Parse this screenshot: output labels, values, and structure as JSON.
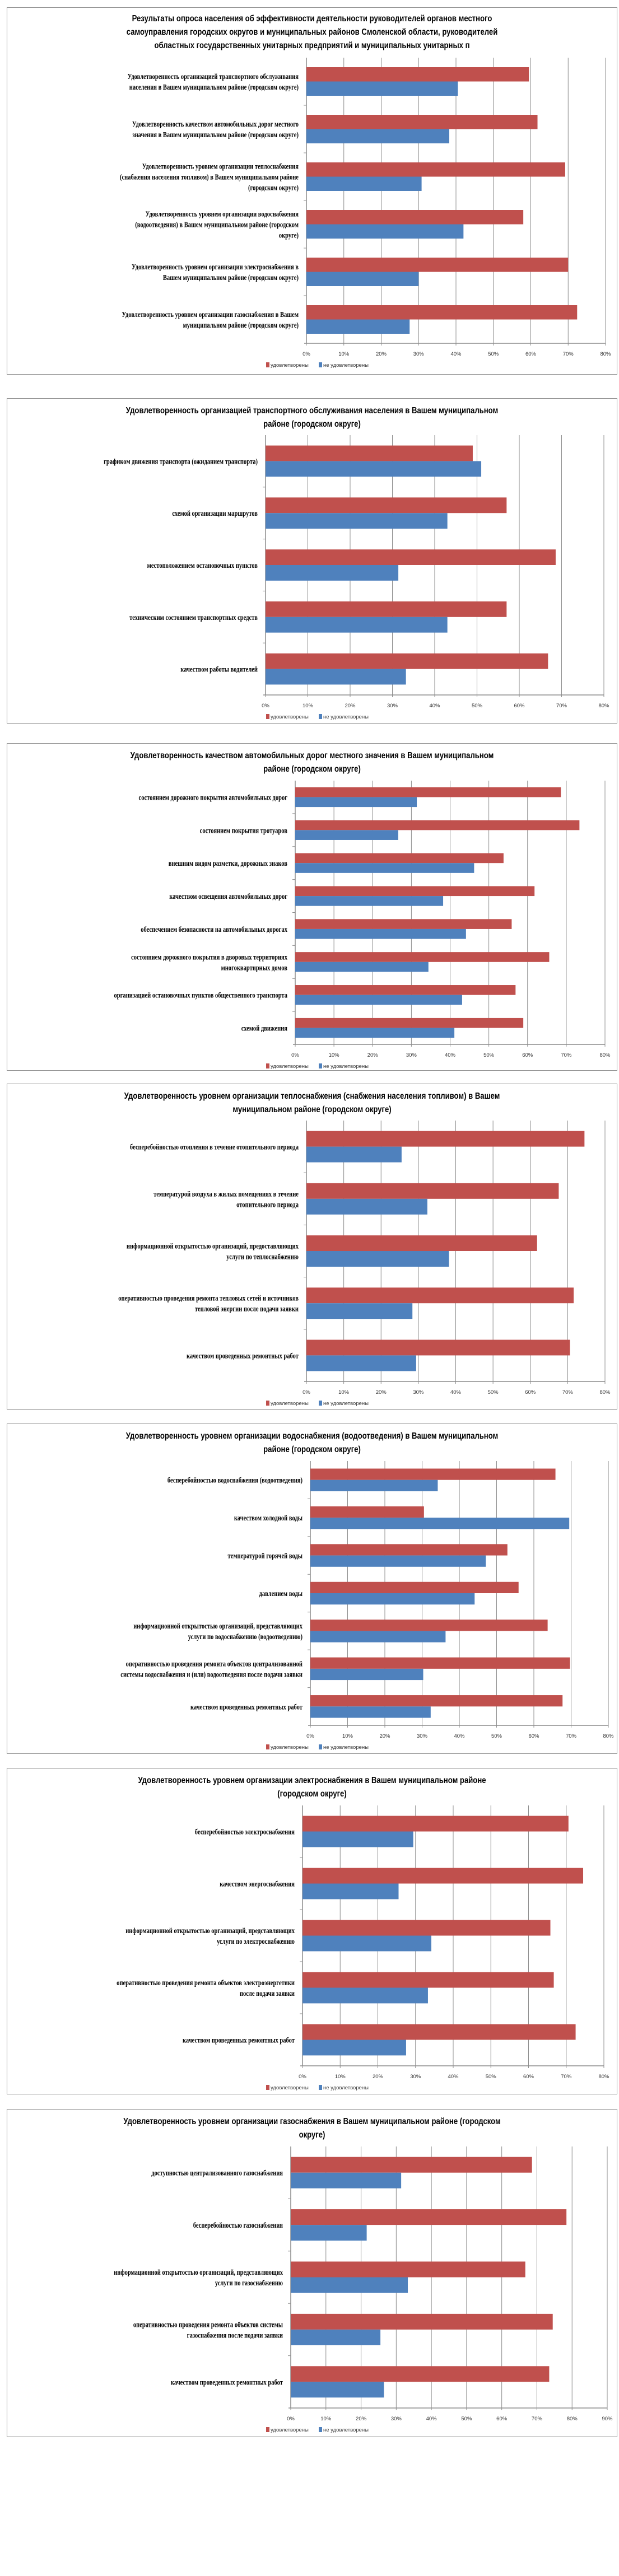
{
  "colors": {
    "satisfied": "#c0504d",
    "unsatisfied": "#4f81bd",
    "grid": "#8c8c8c",
    "frame": "#8c8c8c"
  },
  "chart_data": [
    {
      "type": "bar",
      "orientation": "horizontal",
      "title": "Результаты опроса населения об эффективности деятельности руководителей органов местного самоуправления городских округов и муниципальных районов Смоленской области, руководителей областных государственных унитарных предприятий и муниципальных унитарных п",
      "title_lines": [
        "Результаты опроса населения об эффективности деятельности руководителей органов местного",
        "самоуправления городских округов и муниципальных районов Смоленской области, руководителей",
        "областных государственных унитарных предприятий и муниципальных унитарных п"
      ],
      "categories": [
        [
          "Удовлетворенность организацией транспортного обслуживания",
          "населения в Вашем муниципальном районе (городском округе)"
        ],
        [
          "Удовлетворенность качеством автомобильных дорог местного",
          "значения в Вашем муниципальном районе (городском округе)"
        ],
        [
          "Удовлетворенность уровнем организации теплоснабжения",
          "(снабжения населения топливом) в Вашем муниципальном районе",
          "(городском округе)"
        ],
        [
          "Удовлетворенность уровнем организации водоснабжения",
          "(водоотведения) в Вашем муниципальном районе (городском",
          "округе)"
        ],
        [
          "Удовлетворенность уровнем организации электроснабжения в",
          "Вашем муниципальном районе (городском округе)"
        ],
        [
          "Удовлетворенность уровнем организации газоснабжения в Вашем",
          "муниципальном районе (городском округе)"
        ]
      ],
      "series": [
        {
          "name": "удовлетворены",
          "values": [
            59.5,
            61.8,
            69.2,
            58.0,
            70.0,
            72.4
          ]
        },
        {
          "name": "не удовлетворены",
          "values": [
            40.5,
            38.2,
            30.8,
            42.0,
            30.0,
            27.6
          ]
        }
      ],
      "xlim": [
        0,
        80
      ],
      "ticks": [
        "0%",
        "10%",
        "20%",
        "30%",
        "40%",
        "50%",
        "60%",
        "70%",
        "80%"
      ],
      "grid": true,
      "legend": "bottom"
    },
    {
      "type": "bar",
      "orientation": "horizontal",
      "title": "Удовлетворенность организацией транспортного обслуживания населения в Вашем муниципальном районе (городском округе)",
      "title_lines": [
        "Удовлетворенность организацией транспортного обслуживания населения в Вашем муниципальном",
        "районе (городском округе)"
      ],
      "categories": [
        [
          "графиком движения транспорта (ожиданием транспорта)"
        ],
        [
          "схемой организации маршрутов"
        ],
        [
          "местоположением остановочных пунктов"
        ],
        [
          "техническим состоянием транспортных средств"
        ],
        [
          "качеством работы водителей"
        ]
      ],
      "series": [
        {
          "name": "удовлетворены",
          "values": [
            49.0,
            57.0,
            68.6,
            57.0,
            66.8
          ]
        },
        {
          "name": "не удовлетворены",
          "values": [
            51.0,
            43.0,
            31.4,
            43.0,
            33.2
          ]
        }
      ],
      "xlim": [
        0,
        80
      ],
      "ticks": [
        "0%",
        "10%",
        "20%",
        "30%",
        "40%",
        "50%",
        "60%",
        "70%",
        "80%"
      ],
      "grid": true,
      "legend": "bottom"
    },
    {
      "type": "bar",
      "orientation": "horizontal",
      "title": "Удовлетворенность качеством автомобильных дорог местного значения в Вашем муниципальном районе (городском округе)",
      "title_lines": [
        "Удовлетворенность качеством автомобильных дорог местного значения в Вашем муниципальном",
        "районе (городском округе)"
      ],
      "categories": [
        [
          "состоянием дорожного покрытия  автомобильных дорог"
        ],
        [
          "состоянием покрытия  тротуаров"
        ],
        [
          "внешним  видом разметки, дорожных знаков"
        ],
        [
          "качеством освещения автомобильных дорог"
        ],
        [
          "обеспечением безопасности на автомобильных дорогах"
        ],
        [
          "состоянием дорожного покрытия  в дворовых территориях",
          "многоквартирных  домов"
        ],
        [
          "организацией остановочных  пунктов  общественного транспорта"
        ],
        [
          "схемой движения"
        ]
      ],
      "series": [
        {
          "name": "удовлетворены",
          "values": [
            68.6,
            73.4,
            53.8,
            61.8,
            55.9,
            65.6,
            56.9,
            58.9
          ]
        },
        {
          "name": "не удовлетворены",
          "values": [
            31.4,
            26.6,
            46.2,
            38.2,
            44.1,
            34.4,
            43.1,
            41.1
          ]
        }
      ],
      "xlim": [
        0,
        80
      ],
      "ticks": [
        "0%",
        "10%",
        "20%",
        "30%",
        "40%",
        "50%",
        "60%",
        "70%",
        "80%"
      ],
      "grid": true,
      "legend": "bottom"
    },
    {
      "type": "bar",
      "orientation": "horizontal",
      "title": "Удовлетворенность уровнем организации теплоснабжения (снабжения населения топливом) в Вашем муниципальном районе (городском округе)",
      "title_lines": [
        "Удовлетворенность уровнем организации теплоснабжения (снабжения населения топливом) в Вашем",
        "муниципальном районе (городском округе)"
      ],
      "categories": [
        [
          "бесперебойностью отопления в течение отопительного  периода"
        ],
        [
          "температурой  воздуха в жилых  помещениях в течение",
          "отопительного периода"
        ],
        [
          "информационной открытостью  организаций, предоставляющих",
          "услуги по теплоснабжению"
        ],
        [
          "оперативностью  проведения ремонта тепловых  сетей и источников",
          "тепловой энергии после подачи заявки"
        ],
        [
          "качеством проведенных ремонтных  работ"
        ]
      ],
      "series": [
        {
          "name": "удовлетворены",
          "values": [
            74.5,
            67.6,
            61.8,
            71.6,
            70.6
          ]
        },
        {
          "name": "не удовлетворены",
          "values": [
            25.5,
            32.4,
            38.2,
            28.4,
            29.4
          ]
        }
      ],
      "xlim": [
        0,
        80
      ],
      "ticks": [
        "0%",
        "10%",
        "20%",
        "30%",
        "40%",
        "50%",
        "60%",
        "70%",
        "80%"
      ],
      "grid": true,
      "legend": "bottom"
    },
    {
      "type": "bar",
      "orientation": "horizontal",
      "title": "Удовлетворенность уровнем организации водоснабжения (водоотведения) в Вашем муниципальном районе (городском округе)",
      "title_lines": [
        "Удовлетворенность уровнем организации водоснабжения (водоотведения) в Вашем муниципальном",
        "районе (городском округе)"
      ],
      "categories": [
        [
          "бесперебойностью водоснабжения (водоотведения)"
        ],
        [
          "качеством холодной воды"
        ],
        [
          "температурой  горячей воды"
        ],
        [
          "давлением воды"
        ],
        [
          "информационной открытостью  организаций, представляющих",
          "услуги по водоснабжению (водоотведению)"
        ],
        [
          "оперативностью  проведения ремонта объектов централизованной",
          "системы водоснабжения и (или) водоотведения после подачи заявки"
        ],
        [
          "качеством проведенных ремонтных  работ"
        ]
      ],
      "series": [
        {
          "name": "удовлетворены",
          "values": [
            65.8,
            30.5,
            52.9,
            55.9,
            63.7,
            69.7,
            67.7
          ]
        },
        {
          "name": "не удовлетворены",
          "values": [
            34.2,
            69.5,
            47.1,
            44.1,
            36.3,
            30.3,
            32.3
          ]
        }
      ],
      "xlim": [
        0,
        80
      ],
      "ticks": [
        "0%",
        "10%",
        "20%",
        "30%",
        "40%",
        "50%",
        "60%",
        "70%",
        "80%"
      ],
      "grid": true,
      "legend": "bottom"
    },
    {
      "type": "bar",
      "orientation": "horizontal",
      "title": "Удовлетворенность уровнем организации электроснабжения в Вашем муниципальном районе (городском округе)",
      "title_lines": [
        "Удовлетворенность уровнем организации электроснабжения в Вашем муниципальном районе",
        "(городском округе)"
      ],
      "categories": [
        [
          "бесперебойностью электроснабжения"
        ],
        [
          "качеством энергоснабжения"
        ],
        [
          "информационной открытостью  организаций, представляющих",
          "услуги по электроснабжению"
        ],
        [
          "оперативностью  проведения ремонта  объектов электроэнергетики",
          "после подачи заявки"
        ],
        [
          "качеством проведенных ремонтных  работ"
        ]
      ],
      "series": [
        {
          "name": "удовлетворены",
          "values": [
            70.6,
            74.5,
            65.8,
            66.7,
            72.5
          ]
        },
        {
          "name": "не удовлетворены",
          "values": [
            29.4,
            25.5,
            34.2,
            33.3,
            27.5
          ]
        }
      ],
      "xlim": [
        0,
        80
      ],
      "ticks": [
        "0%",
        "10%",
        "20%",
        "30%",
        "40%",
        "50%",
        "60%",
        "70%",
        "80%"
      ],
      "grid": true,
      "legend": "bottom"
    },
    {
      "type": "bar",
      "orientation": "horizontal",
      "title": "Удовлетворенность уровнем организации газоснабжения в Вашем муниципальном районе (городском округе)",
      "title_lines": [
        "Удовлетворенность уровнем организации газоснабжения в Вашем муниципальном районе (городском",
        "округе)"
      ],
      "categories": [
        [
          "доступностью  централизованного  газоснабжения"
        ],
        [
          "бесперебойностью газоснабжения"
        ],
        [
          "информационной открытостью  организаций, представляющих",
          "услуги по газоснабжению"
        ],
        [
          "оперативностью  проведения ремонта  объектов системы",
          "газоснабжения после подачи заявки"
        ],
        [
          "качеством проведенных ремонтных  работ"
        ]
      ],
      "series": [
        {
          "name": "удовлетворены",
          "values": [
            68.6,
            78.4,
            66.7,
            74.5,
            73.5
          ]
        },
        {
          "name": "не удовлетворены",
          "values": [
            31.4,
            21.6,
            33.3,
            25.5,
            26.5
          ]
        }
      ],
      "xlim": [
        0,
        90
      ],
      "ticks": [
        "0%",
        "10%",
        "20%",
        "30%",
        "40%",
        "50%",
        "60%",
        "70%",
        "80%",
        "90%"
      ],
      "grid": true,
      "legend": "bottom"
    }
  ]
}
